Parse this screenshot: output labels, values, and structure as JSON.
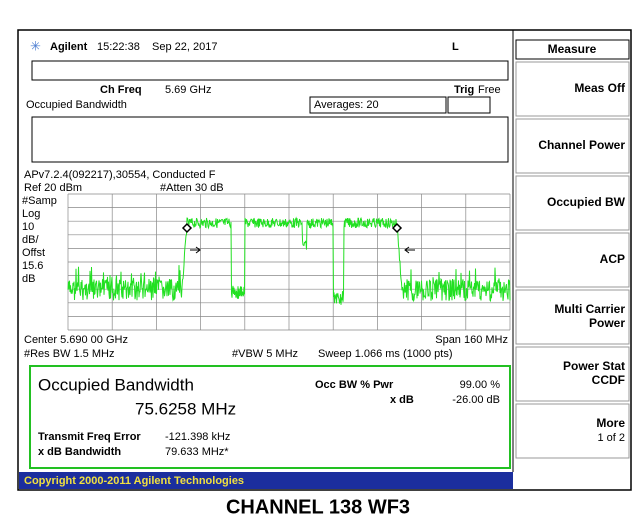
{
  "header": {
    "brand": "Agilent",
    "time": "15:22:38",
    "date": "Sep 22, 2017",
    "flag": "L"
  },
  "status": {
    "ch_freq_label": "Ch Freq",
    "ch_freq": "5.69 GHz",
    "trig_label": "Trig",
    "trig": "Free",
    "mode": "Occupied Bandwidth",
    "averages": "Averages: 20"
  },
  "info": "APv7.2.4(092217),30554, Conducted F",
  "ref": "Ref 20 dBm",
  "atten": "#Atten 30 dB",
  "scale": [
    "#Samp",
    "Log",
    "10",
    "dB/",
    "Offst",
    "15.6",
    "dB"
  ],
  "center": "Center 5.690 00 GHz",
  "span": "Span 160 MHz",
  "res_bw": "#Res BW 1.5 MHz",
  "vbw": "#VBW 5 MHz",
  "sweep": "Sweep 1.066 ms (1000 pts)",
  "results": {
    "title": "Occupied Bandwidth",
    "value": "75.6258 MHz",
    "pwr_label": "Occ BW % Pwr",
    "pwr": "99.00 %",
    "xdb_label": "x dB",
    "xdb": "-26.00 dB",
    "tfe_label": "Transmit Freq Error",
    "tfe": "-121.398 kHz",
    "xbw_label": "x dB Bandwidth",
    "xbw": "79.633 MHz*"
  },
  "softkeys": {
    "menu": "Measure",
    "keys": [
      [
        "Meas Off"
      ],
      [
        "Channel Power"
      ],
      [
        "Occupied BW"
      ],
      [
        "ACP"
      ],
      [
        "Multi Carrier",
        "Power"
      ],
      [
        "Power Stat",
        "CCDF"
      ],
      [
        "More",
        "1 of 2"
      ]
    ]
  },
  "copyright": "Copyright 2000-2011 Agilent Technologies",
  "caption": "CHANNEL 138 WF3"
}
